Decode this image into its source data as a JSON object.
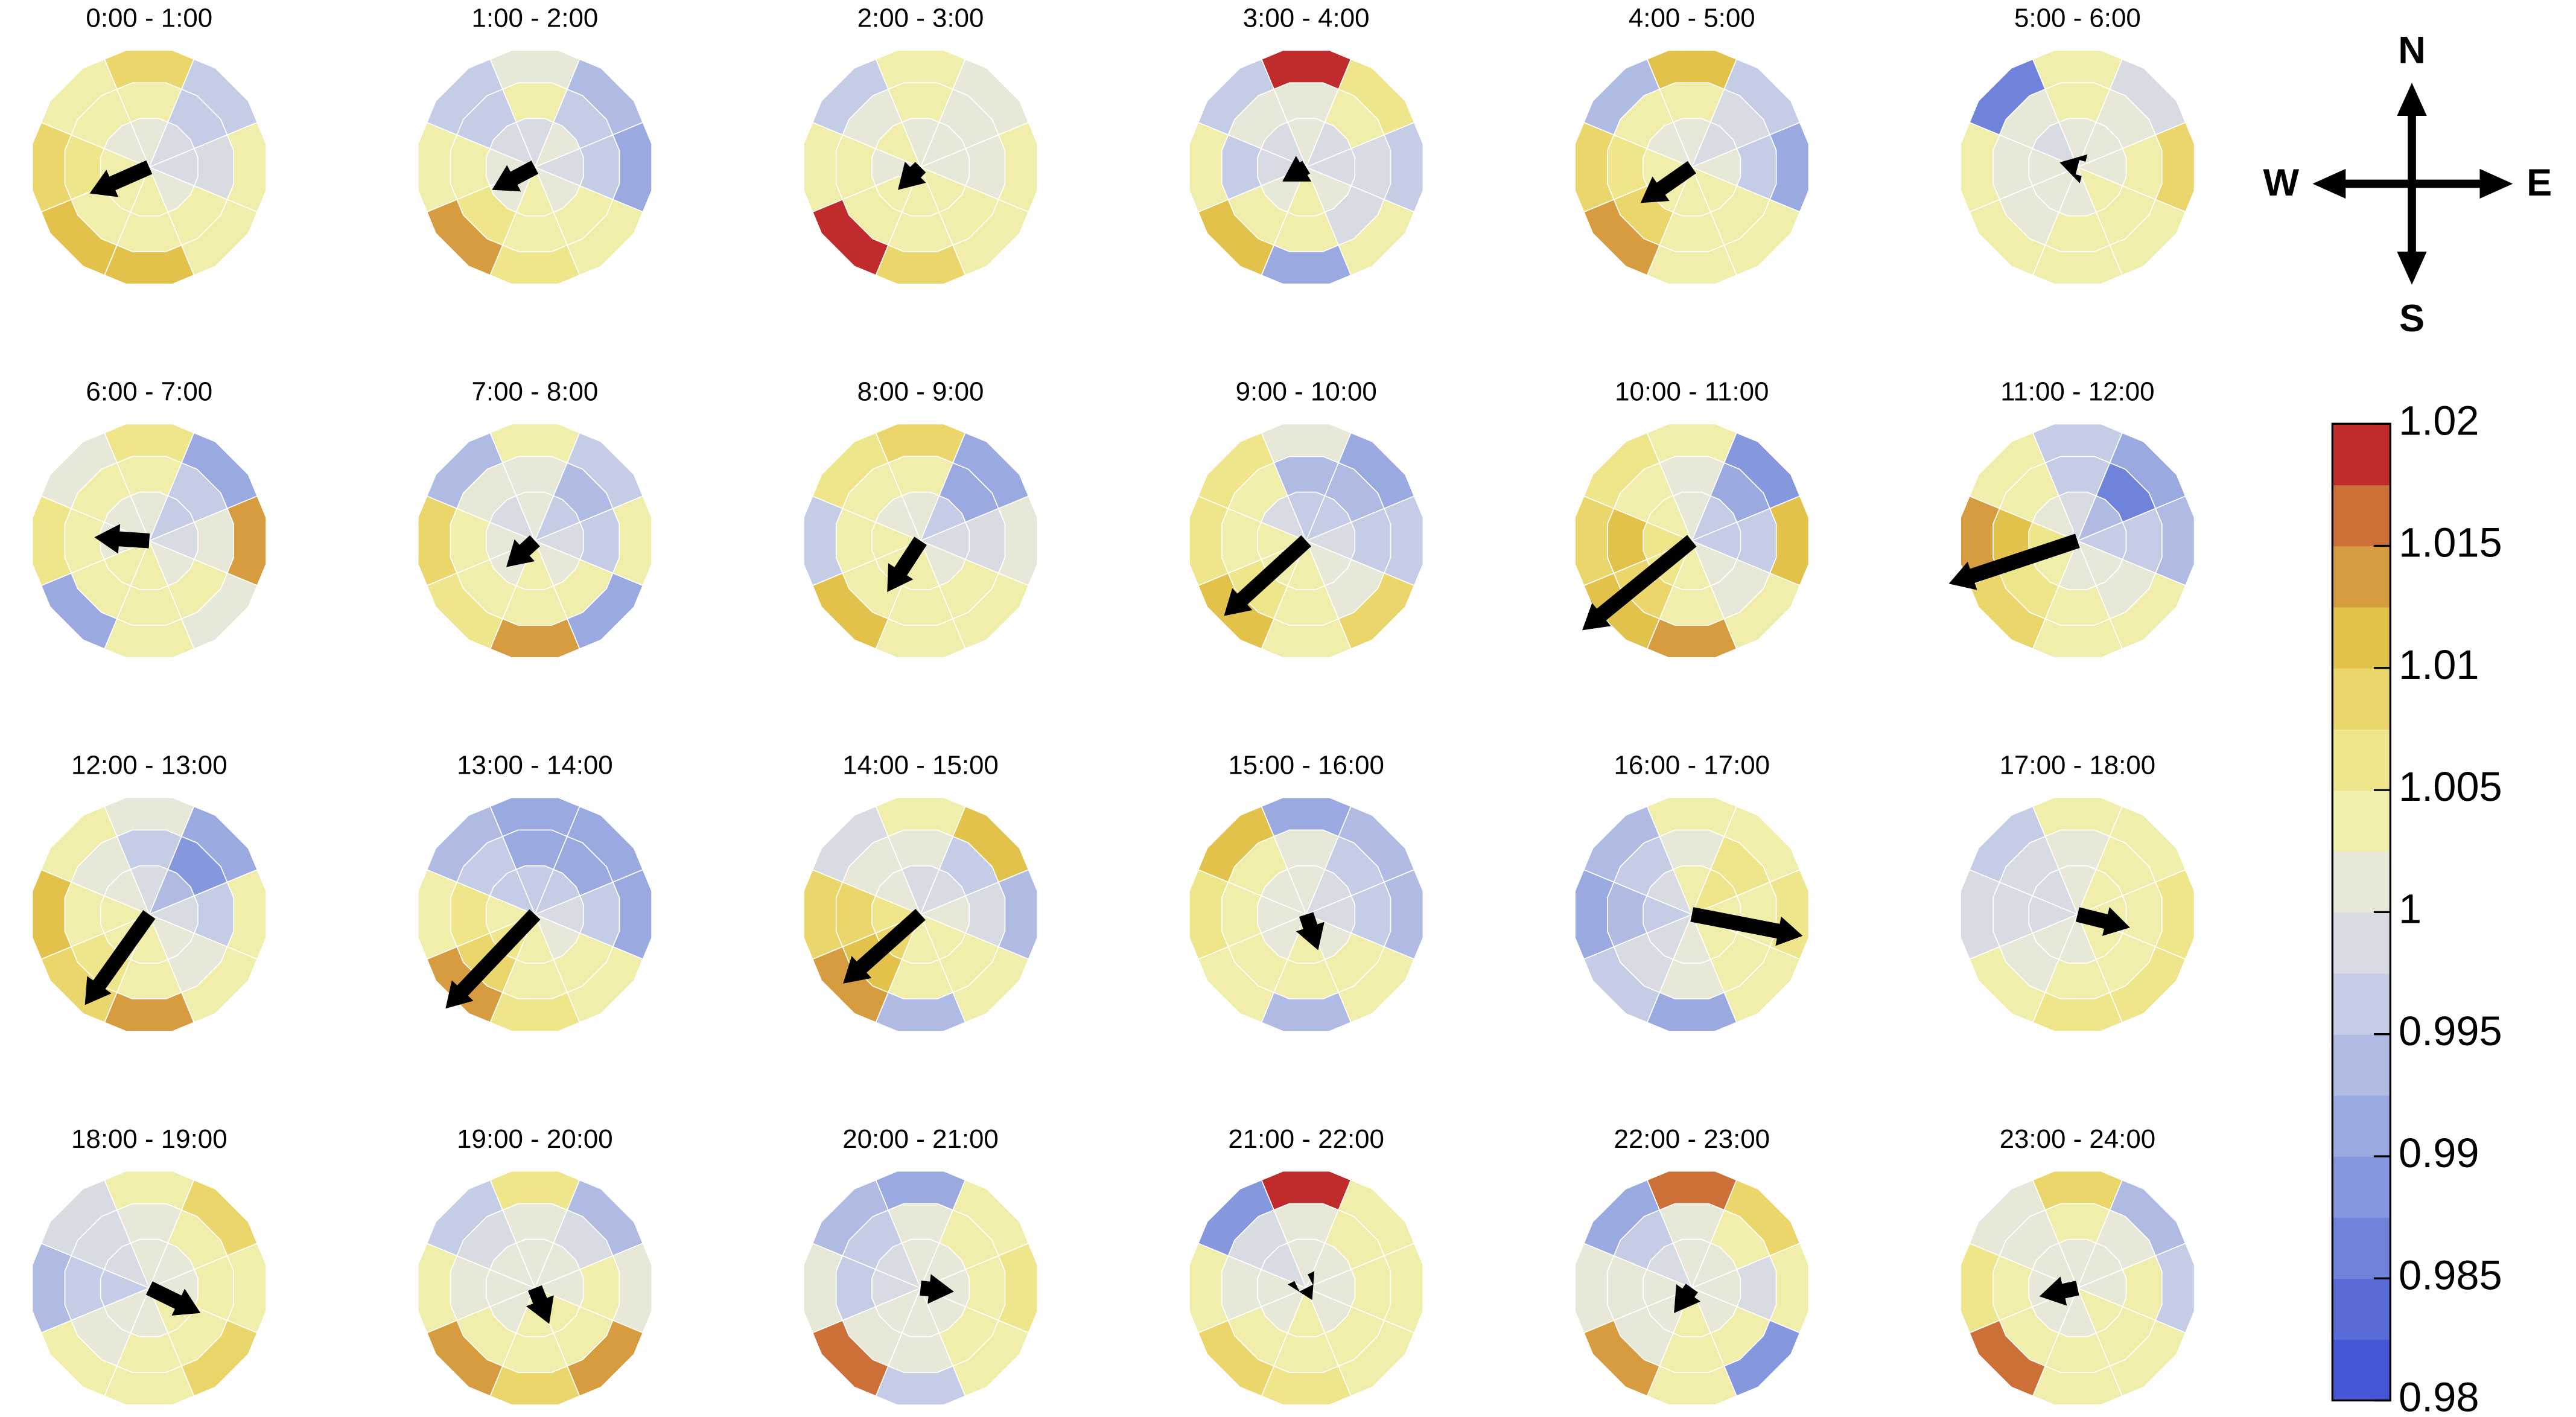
{
  "chart_data": {
    "type": "polar_grid",
    "panels": [
      {
        "title": "0:00 - 1:00",
        "arrow": [
          -0.5,
          -0.22
        ],
        "values": [
          1.001,
          0.998,
          0.999,
          1.002,
          1.003,
          1.004,
          1.003,
          1.002,
          1.003,
          0.997,
          0.998,
          1.004,
          1.005,
          1.005,
          1.006,
          1.003,
          1.008,
          0.996,
          1.004,
          1.003,
          1.012,
          1.01,
          1.009,
          1.004
        ]
      },
      {
        "title": "1:00 - 2:00",
        "arrow": [
          -0.36,
          -0.19
        ],
        "values": [
          0.999,
          1.001,
          0.998,
          1.002,
          1.003,
          1.002,
          1.001,
          0.998,
          1.004,
          0.997,
          0.996,
          1.003,
          1.004,
          1.006,
          1.003,
          0.997,
          1.002,
          0.994,
          0.99,
          1.004,
          1.007,
          1.013,
          1.004,
          0.996
        ]
      },
      {
        "title": "2:00 - 3:00",
        "arrow": [
          -0.19,
          -0.19
        ],
        "values": [
          1.002,
          1.001,
          1.0,
          1.003,
          1.003,
          1.004,
          1.002,
          1.003,
          1.003,
          1.002,
          1.001,
          1.004,
          1.004,
          1.005,
          1.004,
          1.002,
          1.004,
          1.002,
          1.003,
          1.003,
          1.009,
          1.018,
          1.004,
          0.995
        ]
      },
      {
        "title": "3:00 - 4:00",
        "arrow": [
          -0.2,
          -0.12
        ],
        "values": [
          1.001,
          0.998,
          0.999,
          1.0,
          1.003,
          1.001,
          0.999,
          0.998,
          1.002,
          1.003,
          0.998,
          0.999,
          1.004,
          1.003,
          0.997,
          1.0,
          1.019,
          1.006,
          0.996,
          1.003,
          0.992,
          1.012,
          1.003,
          0.995
        ]
      },
      {
        "title": "4:00 - 5:00",
        "arrow": [
          -0.43,
          -0.3
        ],
        "values": [
          1.002,
          0.999,
          1.0,
          1.003,
          1.004,
          1.005,
          1.003,
          1.002,
          1.003,
          0.998,
          0.997,
          1.004,
          1.005,
          1.008,
          1.006,
          1.004,
          1.01,
          0.996,
          0.991,
          1.004,
          1.004,
          1.014,
          1.008,
          0.993
        ]
      },
      {
        "title": "5:00 - 6:00",
        "arrow": [
          -0.15,
          0.04
        ],
        "values": [
          1.001,
          1.0,
          1.002,
          1.003,
          1.002,
          1.001,
          1.0,
          0.999,
          1.003,
          1.001,
          1.003,
          1.004,
          1.004,
          1.002,
          1.002,
          1.001,
          1.005,
          0.998,
          1.008,
          1.004,
          1.004,
          1.005,
          1.003,
          0.986
        ]
      },
      {
        "title": "6:00 - 7:00",
        "arrow": [
          -0.46,
          0.03
        ],
        "values": [
          1.001,
          0.997,
          0.998,
          1.002,
          1.003,
          1.003,
          1.002,
          1.001,
          1.003,
          0.996,
          1.0,
          1.003,
          1.004,
          1.003,
          1.005,
          1.004,
          1.007,
          0.992,
          1.013,
          1.0,
          1.004,
          0.992,
          1.006,
          1.002
        ]
      },
      {
        "title": "7:00 - 8:00",
        "arrow": [
          -0.24,
          -0.22
        ],
        "values": [
          1.0,
          0.997,
          0.998,
          1.001,
          1.003,
          1.002,
          1.002,
          0.999,
          1.002,
          0.994,
          0.997,
          1.003,
          1.004,
          1.004,
          1.005,
          1.0,
          1.004,
          0.996,
          1.003,
          0.992,
          1.014,
          1.006,
          1.008,
          0.993
        ]
      },
      {
        "title": "8:00 - 9:00",
        "arrow": [
          -0.28,
          -0.43
        ],
        "values": [
          1.001,
          0.996,
          0.999,
          1.002,
          1.003,
          1.004,
          1.003,
          1.0,
          1.003,
          0.992,
          0.998,
          1.003,
          1.004,
          1.005,
          1.004,
          1.003,
          1.009,
          0.99,
          1.002,
          1.004,
          1.005,
          1.01,
          0.995,
          1.006
        ]
      },
      {
        "title": "9:00 - 10:00",
        "arrow": [
          -0.69,
          -0.63
        ],
        "values": [
          0.997,
          0.995,
          0.998,
          1.001,
          1.003,
          1.004,
          1.003,
          0.999,
          0.993,
          0.993,
          0.997,
          1.002,
          1.004,
          1.006,
          1.004,
          1.003,
          1.002,
          0.99,
          0.995,
          1.009,
          1.003,
          1.011,
          1.006,
          1.007
        ]
      },
      {
        "title": "10:00 - 11:00",
        "arrow": [
          -0.92,
          -0.75
        ],
        "values": [
          1.001,
          0.995,
          0.996,
          1.0,
          1.003,
          1.006,
          1.007,
          1.003,
          1.002,
          0.99,
          0.995,
          1.001,
          1.005,
          1.008,
          1.01,
          1.004,
          1.003,
          0.988,
          1.01,
          1.004,
          1.015,
          1.012,
          1.009,
          1.006
        ]
      },
      {
        "title": "11:00 - 12:00",
        "arrow": [
          -1.08,
          -0.36
        ],
        "values": [
          0.998,
          0.993,
          0.997,
          1.001,
          1.002,
          1.004,
          1.006,
          1.002,
          0.996,
          0.986,
          0.996,
          1.002,
          1.003,
          1.007,
          1.012,
          1.003,
          0.997,
          0.992,
          0.994,
          1.003,
          1.005,
          1.009,
          1.013,
          1.004
        ]
      },
      {
        "title": "12:00 - 13:00",
        "arrow": [
          -0.54,
          -0.76
        ],
        "values": [
          0.998,
          0.993,
          0.998,
          1.002,
          1.004,
          1.005,
          1.003,
          1.0,
          0.996,
          0.988,
          0.996,
          1.002,
          1.004,
          1.006,
          1.004,
          1.002,
          1.0,
          0.99,
          1.004,
          1.005,
          1.014,
          1.008,
          1.011,
          1.003
        ]
      },
      {
        "title": "13:00 - 14:00",
        "arrow": [
          -0.75,
          -0.79
        ],
        "values": [
          0.996,
          0.995,
          0.998,
          1.002,
          1.003,
          1.006,
          1.004,
          0.997,
          0.99,
          0.991,
          0.997,
          1.003,
          1.005,
          1.008,
          1.006,
          0.996,
          0.992,
          0.992,
          0.99,
          1.004,
          1.006,
          1.014,
          1.004,
          0.994
        ]
      },
      {
        "title": "14:00 - 15:00",
        "arrow": [
          -0.65,
          -0.58
        ],
        "values": [
          0.999,
          0.998,
          1.0,
          1.003,
          1.004,
          1.008,
          1.006,
          1.001,
          1.0,
          0.997,
          0.998,
          1.004,
          1.005,
          1.01,
          1.008,
          1.002,
          1.004,
          1.01,
          0.994,
          1.004,
          0.993,
          1.013,
          1.009,
          0.998
        ]
      },
      {
        "title": "15:00 - 16:00",
        "arrow": [
          0.1,
          -0.3
        ],
        "values": [
          1.001,
          0.999,
          0.998,
          1.002,
          1.003,
          1.002,
          1.001,
          1.002,
          1.002,
          0.997,
          0.996,
          1.004,
          1.004,
          1.003,
          1.003,
          1.004,
          0.99,
          0.994,
          0.993,
          1.004,
          0.994,
          1.004,
          1.006,
          1.012
        ]
      },
      {
        "title": "16:00 - 17:00",
        "arrow": [
          0.93,
          -0.18
        ],
        "values": [
          1.003,
          1.006,
          1.004,
          1.003,
          1.002,
          0.999,
          0.996,
          0.998,
          1.002,
          1.006,
          1.005,
          1.004,
          1.002,
          0.998,
          0.994,
          0.996,
          1.003,
          1.005,
          1.006,
          1.004,
          0.991,
          0.997,
          0.992,
          0.994
        ]
      },
      {
        "title": "17:00 - 18:00",
        "arrow": [
          0.44,
          -0.11
        ],
        "values": [
          1.001,
          1.003,
          1.004,
          1.003,
          1.002,
          1.0,
          0.999,
          0.999,
          1.002,
          1.004,
          1.005,
          1.004,
          1.003,
          1.001,
          0.998,
          0.998,
          1.003,
          1.004,
          1.006,
          1.007,
          1.006,
          1.003,
          0.998,
          0.997
        ]
      },
      {
        "title": "18:00 - 19:00",
        "arrow": [
          0.43,
          -0.21
        ],
        "values": [
          1.0,
          1.001,
          1.002,
          1.003,
          1.002,
          1.001,
          0.997,
          0.999,
          1.001,
          1.003,
          1.004,
          1.004,
          1.003,
          1.002,
          0.996,
          0.998,
          1.003,
          1.008,
          1.005,
          1.009,
          1.005,
          1.004,
          0.994,
          0.998
        ]
      },
      {
        "title": "19:00 - 20:00",
        "arrow": [
          0.12,
          -0.3
        ],
        "values": [
          1.001,
          1.002,
          1.001,
          1.003,
          1.003,
          1.002,
          1.001,
          1.0,
          1.002,
          0.998,
          1.003,
          1.004,
          1.005,
          1.003,
          1.002,
          0.998,
          1.007,
          0.994,
          1.0,
          1.014,
          1.009,
          1.015,
          1.003,
          0.995
        ]
      },
      {
        "title": "20:00 - 21:00",
        "arrow": [
          0.28,
          -0.03
        ],
        "values": [
          1.0,
          1.001,
          1.002,
          1.002,
          1.001,
          1.0,
          0.999,
          0.998,
          1.002,
          1.003,
          1.004,
          1.003,
          1.002,
          1.001,
          0.997,
          0.996,
          0.99,
          1.004,
          1.006,
          1.003,
          0.997,
          1.017,
          1.002,
          0.993
        ]
      },
      {
        "title": "21:00 - 22:00",
        "arrow": [
          0.05,
          -0.1
        ],
        "values": [
          1.001,
          1.002,
          1.001,
          1.002,
          1.003,
          1.002,
          1.0,
          0.999,
          1.002,
          1.003,
          1.003,
          1.004,
          1.004,
          1.003,
          1.001,
          0.998,
          1.018,
          1.004,
          1.005,
          1.004,
          1.006,
          1.008,
          1.004,
          0.988
        ]
      },
      {
        "title": "22:00 - 23:00",
        "arrow": [
          -0.15,
          -0.21
        ],
        "values": [
          1.001,
          1.002,
          1.0,
          1.002,
          1.003,
          1.001,
          1.0,
          0.999,
          1.002,
          1.004,
          0.998,
          1.003,
          1.004,
          1.002,
          1.001,
          0.997,
          1.017,
          1.008,
          1.003,
          0.988,
          1.004,
          1.013,
          1.002,
          0.99
        ]
      },
      {
        "title": "23:00 - 24:00",
        "arrow": [
          -0.32,
          -0.07
        ],
        "values": [
          1.001,
          1.002,
          1.002,
          1.003,
          1.002,
          1.002,
          1.001,
          1.0,
          1.003,
          1.0,
          1.003,
          1.004,
          1.004,
          1.003,
          1.003,
          1.002,
          1.009,
          0.994,
          0.996,
          1.004,
          1.003,
          1.017,
          1.007,
          1.002
        ]
      }
    ],
    "compass": {
      "north": "N",
      "east": "E",
      "south": "S",
      "west": "W"
    },
    "colorbar": {
      "lim": [
        0.98,
        1.02
      ],
      "ticks": [
        0.98,
        0.985,
        0.99,
        0.995,
        1,
        1.005,
        1.01,
        1.015,
        1.02
      ],
      "colors": [
        "#4557d6",
        "#5a6cd8",
        "#7083da",
        "#8597dd",
        "#9aa9e0",
        "#b0bbe3",
        "#c5cce5",
        "#d8dbe2",
        "#e8e8d8",
        "#f0eeaa",
        "#efe58a",
        "#ead66a",
        "#e2c24a",
        "#d89c40",
        "#cc7038",
        "#c02c2c"
      ]
    }
  }
}
